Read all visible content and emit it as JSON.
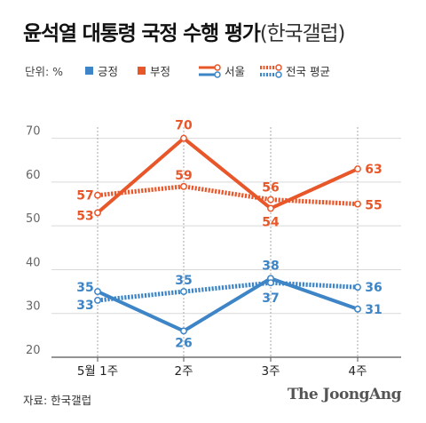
{
  "title": "윤석열 대통령 국정 수행 평가",
  "title_sub": "(한국갤럽)",
  "legend": {
    "unit": "단위: %",
    "approve": "긍정",
    "disapprove": "부정",
    "seoul": "서울",
    "national": "전국 평균"
  },
  "colors": {
    "approve": "#3d85c6",
    "disapprove": "#e8572a",
    "axis": "#888888",
    "grid": "#d9d9d9",
    "text": "#444444"
  },
  "source": "자료: 한국갤럽",
  "brand": "The JoongAng",
  "chart_data": {
    "type": "line",
    "categories": [
      "5월 1주",
      "2주",
      "3주",
      "4주"
    ],
    "ylim": [
      20,
      75
    ],
    "yticks": [
      20,
      30,
      40,
      50,
      60,
      70
    ],
    "grid": "horizontal",
    "legend_position": "top",
    "series": [
      {
        "name": "부정",
        "group": "서울",
        "key": "disapprove",
        "style": "solid",
        "values": [
          53,
          70,
          54,
          63
        ]
      },
      {
        "name": "부정",
        "group": "전국 평균",
        "key": "disapprove",
        "style": "dotted",
        "values": [
          57,
          59,
          56,
          55
        ]
      },
      {
        "name": "긍정",
        "group": "서울",
        "key": "approve",
        "style": "solid",
        "values": [
          35,
          26,
          38,
          31
        ]
      },
      {
        "name": "긍정",
        "group": "전국 평균",
        "key": "approve",
        "style": "dotted",
        "values": [
          33,
          35,
          37,
          36
        ]
      }
    ]
  }
}
